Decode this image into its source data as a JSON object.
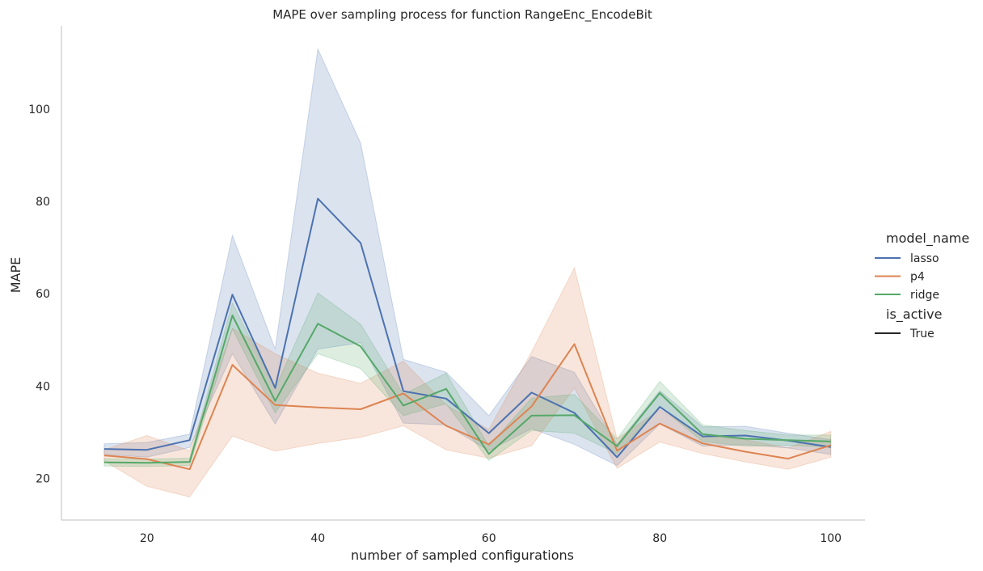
{
  "chart_data": {
    "type": "line",
    "title": "MAPE over sampling process for function RangeEnc_EncodeBit",
    "xlabel": "number of sampled configurations",
    "ylabel": "MAPE",
    "xlim": [
      10,
      104
    ],
    "ylim": [
      11,
      118
    ],
    "xticks": [
      20,
      40,
      60,
      80,
      100
    ],
    "yticks": [
      20,
      40,
      60,
      80,
      100
    ],
    "grid": false,
    "legend_placement": "right",
    "legend": {
      "hue_title": "model_name",
      "style_title": "is_active",
      "style_entries": [
        "True"
      ]
    },
    "x": [
      15,
      20,
      25,
      30,
      35,
      40,
      45,
      50,
      55,
      60,
      65,
      70,
      75,
      80,
      85,
      90,
      95,
      100
    ],
    "series": [
      {
        "name": "lasso",
        "color": "#4c72b0",
        "values": [
          26.4,
          26.2,
          28.3,
          59.8,
          39.6,
          80.6,
          71.0,
          38.9,
          37.3,
          29.8,
          38.6,
          34.2,
          24.6,
          35.5,
          29.1,
          29.3,
          28.2,
          26.8
        ],
        "upper": [
          27.5,
          27.8,
          29.6,
          72.6,
          48.0,
          113.0,
          92.6,
          45.8,
          43.0,
          33.6,
          46.4,
          43.0,
          27.4,
          39.0,
          31.2,
          31.3,
          29.8,
          28.4
        ],
        "lower": [
          25.2,
          24.6,
          26.7,
          47.0,
          31.8,
          48.0,
          49.4,
          32.0,
          31.6,
          26.0,
          30.8,
          27.4,
          22.8,
          31.8,
          27.0,
          27.3,
          26.6,
          25.2
        ]
      },
      {
        "name": "p4",
        "color": "#dd8452",
        "values": [
          25.0,
          24.2,
          22.0,
          44.6,
          35.9,
          35.4,
          35.0,
          38.4,
          31.4,
          27.4,
          35.6,
          49.1,
          26.0,
          31.9,
          27.6,
          25.8,
          24.3,
          27.2
        ],
        "upper": [
          26.2,
          29.3,
          26.0,
          52.5,
          47.0,
          42.8,
          40.6,
          45.4,
          35.9,
          30.6,
          47.4,
          65.6,
          28.6,
          34.9,
          29.2,
          28.4,
          26.6,
          30.2
        ],
        "lower": [
          23.8,
          18.3,
          16.0,
          29.2,
          25.9,
          27.6,
          28.9,
          31.4,
          26.2,
          24.4,
          27.1,
          39.6,
          22.2,
          27.9,
          25.4,
          23.6,
          22.0,
          24.6
        ]
      },
      {
        "name": "ridge",
        "color": "#55a868",
        "values": [
          23.5,
          23.4,
          23.6,
          55.3,
          36.8,
          53.5,
          48.6,
          35.8,
          39.4,
          25.3,
          33.6,
          33.7,
          27.0,
          38.5,
          29.6,
          28.6,
          28.3,
          28.0
        ],
        "upper": [
          24.3,
          24.2,
          24.4,
          58.0,
          39.6,
          60.2,
          53.4,
          38.2,
          42.8,
          27.0,
          37.4,
          38.2,
          28.6,
          41.0,
          31.6,
          30.4,
          29.4,
          29.4
        ],
        "lower": [
          22.7,
          22.6,
          22.8,
          52.4,
          34.2,
          47.0,
          43.8,
          33.6,
          36.2,
          23.9,
          30.4,
          29.8,
          25.4,
          35.6,
          28.0,
          27.0,
          27.2,
          26.8
        ]
      }
    ]
  }
}
